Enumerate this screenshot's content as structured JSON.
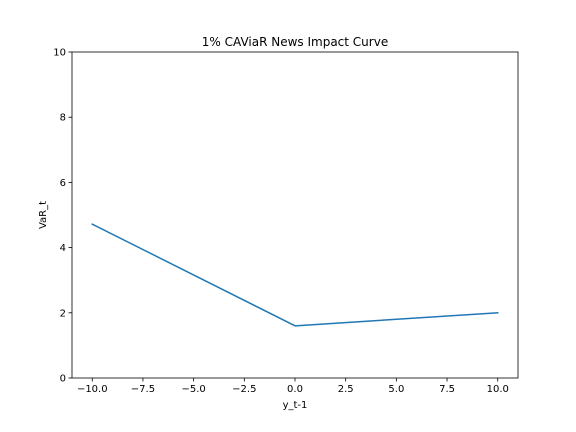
{
  "chart_data": {
    "type": "line",
    "title": "1% CAViaR News Impact Curve",
    "xlabel": "y_t-1",
    "ylabel": "VaR_t",
    "xlim": [
      -11,
      11
    ],
    "ylim": [
      0,
      10
    ],
    "xticks": [
      -10.0,
      -7.5,
      -5.0,
      -2.5,
      0.0,
      2.5,
      5.0,
      7.5,
      10.0
    ],
    "xtick_labels": [
      "−10.0",
      "−7.5",
      "−5.0",
      "−2.5",
      "0.0",
      "2.5",
      "5.0",
      "7.5",
      "10.0"
    ],
    "yticks": [
      0,
      2,
      4,
      6,
      8,
      10
    ],
    "ytick_labels": [
      "0",
      "2",
      "4",
      "6",
      "8",
      "10"
    ],
    "grid": false,
    "series": [
      {
        "color": "#1f77b4",
        "x": [
          -10,
          0,
          10
        ],
        "y": [
          4.72,
          1.6,
          2.0
        ]
      }
    ]
  }
}
